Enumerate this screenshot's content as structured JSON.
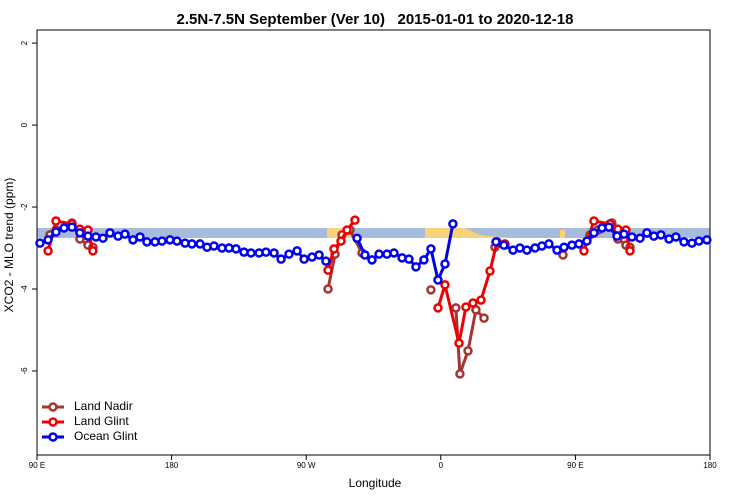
{
  "chart_data": {
    "type": "line",
    "title": "2.5N-7.5N September (Ver 10)   2015-01-01 to 2020-12-18",
    "x_label": "Longitude",
    "y_label": "XCO2 - MLO trend (ppm)",
    "xlim": [
      90,
      540
    ],
    "ylim": [
      -8.05,
      2.32
    ],
    "xticks": [
      {
        "value": 90,
        "label": "90 E"
      },
      {
        "value": 180,
        "label": "180"
      },
      {
        "value": 270,
        "label": "90 W"
      },
      {
        "value": 360,
        "label": "0"
      },
      {
        "value": 450,
        "label": "90 E"
      },
      {
        "value": 540,
        "label": "180"
      }
    ],
    "yticks": [
      2,
      0,
      -2,
      -4,
      -6
    ],
    "legend": "bottom-left",
    "series": [
      {
        "name": "Land Nadir",
        "color": "#a83232",
        "x": [
          98.7,
          102.7,
          113.4,
          118.7,
          124.1,
          127.4,
          null,
          284.6,
          289.3,
          293.9,
          299.3,
          307.3,
          null,
          353.4,
          null,
          370.1,
          372.8,
          378.2,
          383.5,
          388.9,
          null,
          396.2,
          402.9,
          null,
          441.7,
          null,
          459.7,
          465.1,
          474.4,
          478.4,
          483.8,
          486.5
        ],
        "values": [
          -2.68,
          -2.56,
          -2.39,
          -2.78,
          -2.93,
          -2.98,
          null,
          -4.0,
          -3.15,
          -2.68,
          -2.56,
          -3.12,
          null,
          -4.02,
          null,
          -4.46,
          -6.07,
          -5.51,
          -4.51,
          -4.71,
          null,
          -2.98,
          -2.93,
          null,
          -3.17,
          null,
          -2.68,
          -2.56,
          -2.39,
          -2.78,
          -2.93,
          -2.98
        ]
      },
      {
        "name": "Land Glint",
        "color": "#ee0000",
        "x": [
          97.4,
          102.7,
          113.4,
          118.7,
          124.1,
          127.4,
          null,
          284.6,
          288.6,
          293.3,
          297.3,
          302.6,
          null,
          358.1,
          362.8,
          372.2,
          376.8,
          381.5,
          386.9,
          392.9,
          397.6,
          402.9,
          null,
          455.7,
          462.4,
          473.1,
          478.4,
          483.8,
          486.5
        ],
        "values": [
          -3.07,
          -2.34,
          -2.41,
          -2.54,
          -2.56,
          -3.07,
          null,
          -3.54,
          -3.02,
          -2.83,
          -2.56,
          -2.32,
          null,
          -4.46,
          -3.9,
          -5.32,
          -4.44,
          -4.34,
          -4.27,
          -3.56,
          -2.85,
          -2.9,
          null,
          -3.07,
          -2.34,
          -2.41,
          -2.54,
          -2.56,
          -3.07
        ]
      },
      {
        "name": "Ocean Glint",
        "color": "#0000ee",
        "x": [
          92.0,
          97.4,
          102.7,
          108.1,
          113.4,
          118.7,
          124.1,
          129.4,
          134.1,
          138.8,
          144.2,
          148.8,
          154.2,
          158.9,
          163.5,
          168.9,
          173.6,
          178.9,
          183.6,
          189.0,
          193.6,
          199.0,
          203.7,
          208.3,
          213.7,
          218.4,
          223.1,
          228.4,
          233.1,
          238.5,
          243.1,
          248.5,
          253.2,
          258.5,
          263.9,
          268.6,
          273.9,
          278.6,
          283.2,
          null,
          304.0,
          309.3,
          314.0,
          318.7,
          324.0,
          328.7,
          334.1,
          338.7,
          343.4,
          348.7,
          353.4,
          358.1,
          362.8,
          368.1,
          null,
          396.9,
          402.2,
          408.3,
          412.9,
          417.6,
          423.0,
          427.6,
          432.3,
          437.7,
          442.4,
          447.7,
          452.4,
          457.7,
          462.4,
          467.8,
          472.4,
          477.8,
          482.5,
          487.8,
          493.2,
          497.8,
          502.5,
          507.2,
          512.6,
          517.2,
          522.6,
          527.9,
          532.6,
          537.9
        ],
        "values": [
          -2.88,
          -2.8,
          -2.61,
          -2.51,
          -2.49,
          -2.63,
          -2.71,
          -2.73,
          -2.76,
          -2.63,
          -2.71,
          -2.66,
          -2.8,
          -2.73,
          -2.85,
          -2.85,
          -2.83,
          -2.8,
          -2.83,
          -2.88,
          -2.9,
          -2.9,
          -2.98,
          -2.95,
          -3.0,
          -3.0,
          -3.02,
          -3.1,
          -3.12,
          -3.12,
          -3.1,
          -3.12,
          -3.27,
          -3.15,
          -3.07,
          -3.27,
          -3.22,
          -3.17,
          -3.32,
          null,
          -2.76,
          -3.17,
          -3.29,
          -3.15,
          -3.15,
          -3.12,
          -3.24,
          -3.27,
          -3.46,
          -3.29,
          -3.02,
          -3.78,
          -3.39,
          -2.41,
          null,
          -2.85,
          -2.93,
          -3.05,
          -3.0,
          -3.05,
          -3.0,
          -2.95,
          -2.9,
          -3.05,
          -2.98,
          -2.93,
          -2.9,
          -2.83,
          -2.63,
          -2.51,
          -2.49,
          -2.71,
          -2.66,
          -2.73,
          -2.76,
          -2.63,
          -2.71,
          -2.68,
          -2.78,
          -2.73,
          -2.85,
          -2.88,
          -2.83,
          -2.8
        ]
      }
    ]
  }
}
